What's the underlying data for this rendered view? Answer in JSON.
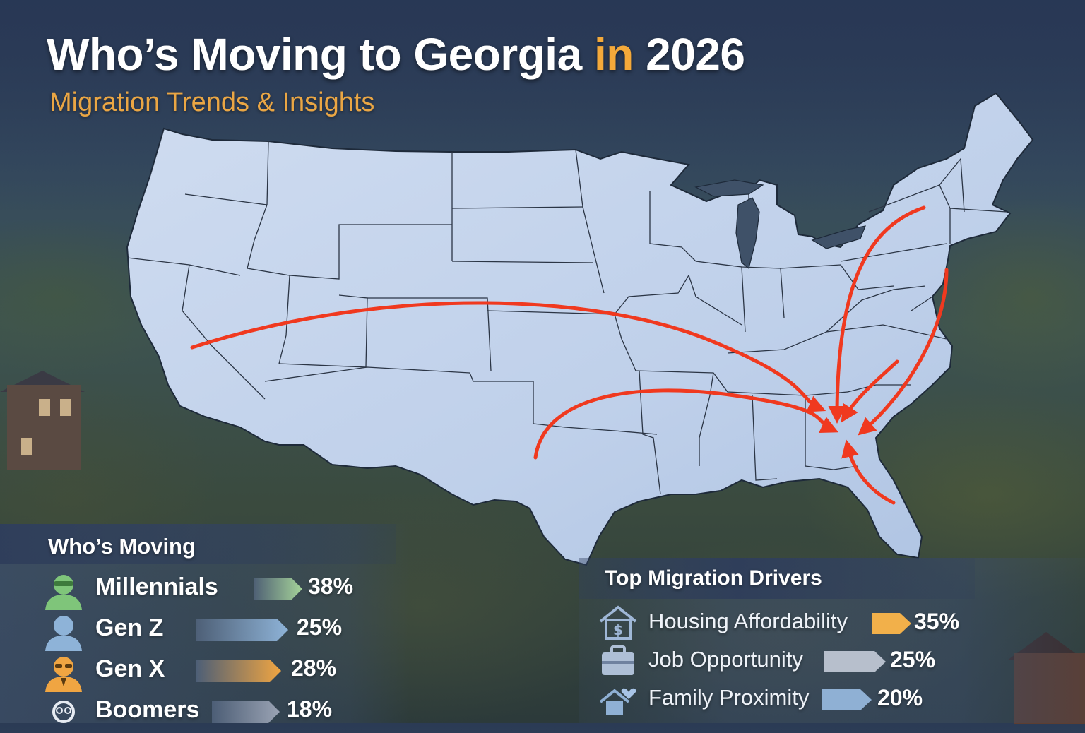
{
  "header": {
    "title_part1": "Who’s Moving to Georgia",
    "title_accent": "in",
    "title_part2": "2026",
    "subtitle": "Migration Trends & Insights"
  },
  "who_moving": {
    "title": "Who’s Moving",
    "items": [
      {
        "label": "Millennials",
        "percent": "38%",
        "value": 38,
        "color": "#a6d49a",
        "icon": "millennial-person-icon"
      },
      {
        "label": "Gen Z",
        "percent": "25%",
        "value": 25,
        "color": "#8eb3d8",
        "icon": "gen-z-person-icon"
      },
      {
        "label": "Gen X",
        "percent": "28%",
        "value": 28,
        "color": "#f0a542",
        "icon": "gen-x-person-icon"
      },
      {
        "label": "Boomers",
        "percent": "18%",
        "value": 18,
        "color": "#9aa3b4",
        "icon": "boomer-person-icon"
      }
    ]
  },
  "drivers": {
    "title": "Top Migration Drivers",
    "items": [
      {
        "label": "Housing Affordability",
        "percent": "35%",
        "value": 35,
        "color": "#f2b04a",
        "icon": "house-dollar-icon"
      },
      {
        "label": "Job Opportunity",
        "percent": "25%",
        "value": 25,
        "color": "#b7bfcc",
        "icon": "briefcase-icon"
      },
      {
        "label": "Family Proximity",
        "percent": "20%",
        "value": 20,
        "color": "#8fb0d4",
        "icon": "house-heart-icon"
      }
    ]
  },
  "colors": {
    "arrow": "#f0391f",
    "map_fill": "#c5d6ec",
    "accent": "#f4a93a"
  }
}
